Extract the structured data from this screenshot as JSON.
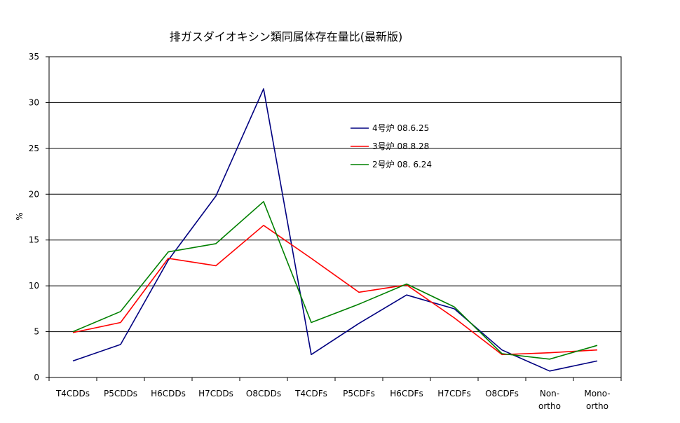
{
  "chart_data": {
    "type": "line",
    "title": "排ガスダイオキシン類同属体存在量比(最新版)",
    "xlabel": "",
    "ylabel": "%",
    "ylim": [
      0,
      35
    ],
    "yticks": [
      0,
      5,
      10,
      15,
      20,
      25,
      30,
      35
    ],
    "grid": "horizontal",
    "legend_position": "right-inside",
    "categories": [
      "T4CDDs",
      "P5CDDs",
      "H6CDDs",
      "H7CDDs",
      "O8CDDs",
      "T4CDFs",
      "P5CDFs",
      "H6CDFs",
      "H7CDFs",
      "O8CDFs",
      "Non-ortho",
      "Mono-ortho"
    ],
    "category_lines": [
      [
        "T4CDDs"
      ],
      [
        "P5CDDs"
      ],
      [
        "H6CDDs"
      ],
      [
        "H7CDDs"
      ],
      [
        "O8CDDs"
      ],
      [
        "T4CDFs"
      ],
      [
        "P5CDFs"
      ],
      [
        "H6CDFs"
      ],
      [
        "H7CDFs"
      ],
      [
        "O8CDFs"
      ],
      [
        "Non-",
        "ortho"
      ],
      [
        "Mono-",
        "ortho"
      ]
    ],
    "series": [
      {
        "name": "4号炉 08.6.25",
        "color": "#000080",
        "values": [
          1.8,
          3.6,
          12.8,
          19.8,
          31.5,
          2.5,
          5.9,
          9.0,
          7.5,
          3.0,
          0.7,
          1.8
        ]
      },
      {
        "name": "3号炉 08.8.28",
        "color": "#ff0000",
        "values": [
          4.9,
          6.0,
          13.0,
          12.2,
          16.6,
          13.0,
          9.3,
          10.1,
          6.5,
          2.5,
          2.7,
          3.0
        ]
      },
      {
        "name": "2号炉 08. 6.24",
        "color": "#008000",
        "values": [
          5.0,
          7.2,
          13.7,
          14.6,
          19.2,
          6.0,
          8.0,
          10.2,
          7.7,
          2.6,
          2.0,
          3.5
        ]
      }
    ]
  }
}
